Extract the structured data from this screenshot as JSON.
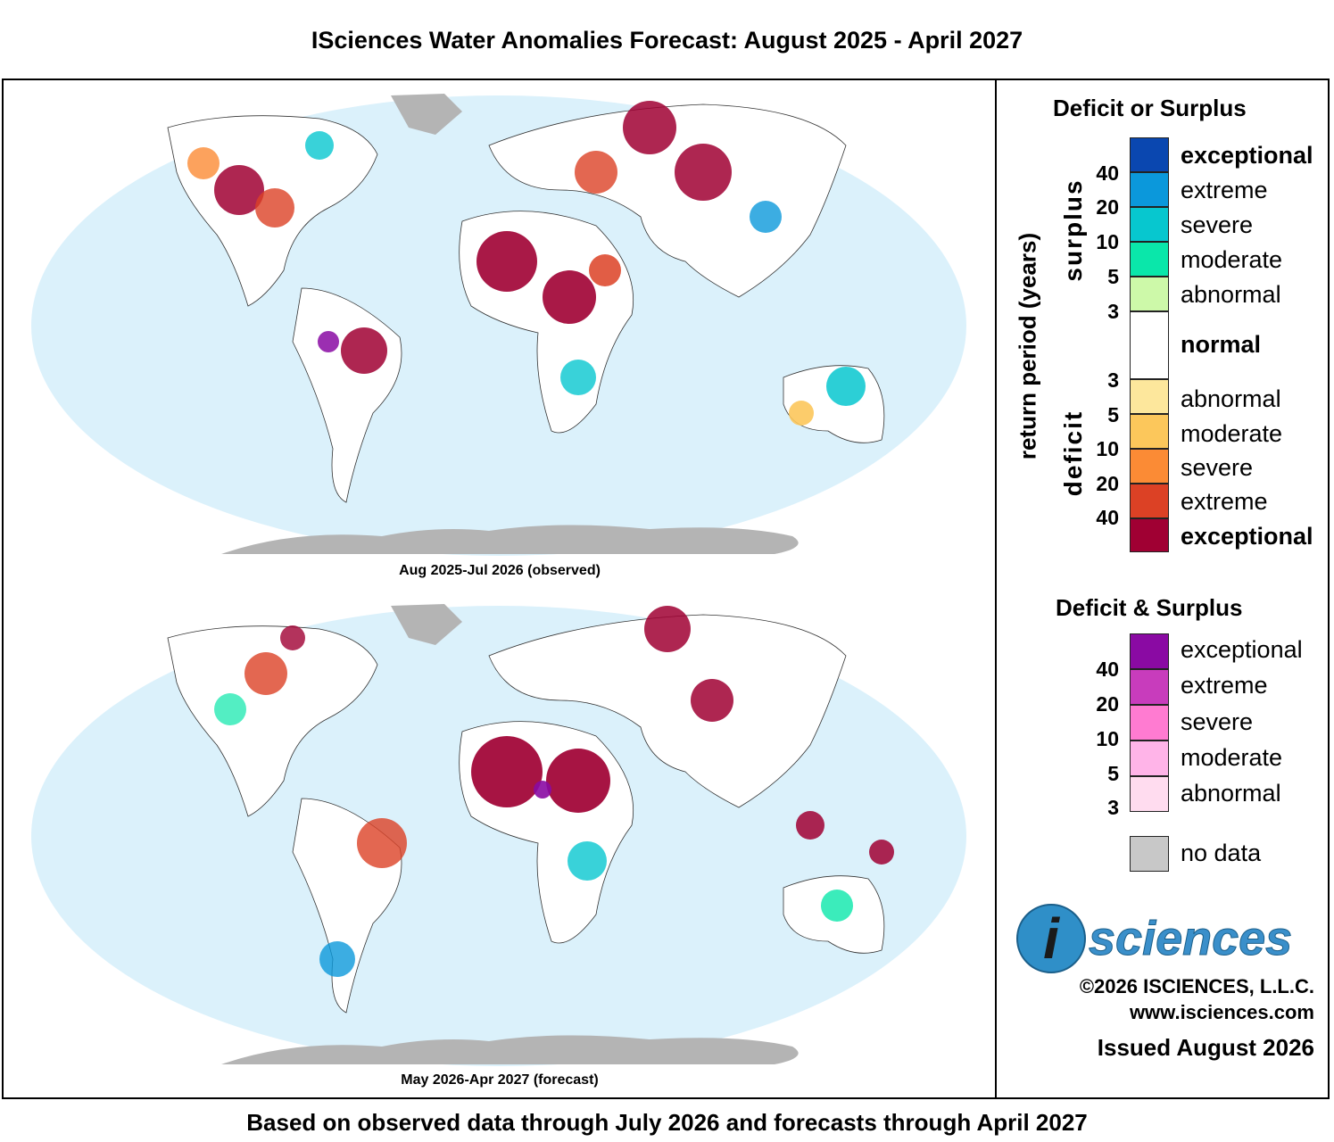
{
  "title": "ISciences Water Anomalies Forecast: August 2025 - April 2027",
  "footer": "Based on observed data through July 2026 and forecasts through April 2027",
  "maps": [
    {
      "caption": "Aug 2025-Jul 2026 (observed)"
    },
    {
      "caption": "May 2026-Apr 2027 (forecast)"
    }
  ],
  "legend": {
    "title1": "Deficit or Surplus",
    "axis_title": "return period (years)",
    "surplus_label": "surplus",
    "deficit_label": "deficit",
    "surplus_items": [
      {
        "label": "exceptional",
        "color": "#0a47b0"
      },
      {
        "label": "extreme",
        "color": "#0b98db"
      },
      {
        "label": "severe",
        "color": "#07c7cf"
      },
      {
        "label": "moderate",
        "color": "#0ae7aa"
      },
      {
        "label": "abnormal",
        "color": "#cdf9a9"
      }
    ],
    "normal_label": "normal",
    "deficit_items": [
      {
        "label": "abnormal",
        "color": "#fde79c"
      },
      {
        "label": "moderate",
        "color": "#fcc75b"
      },
      {
        "label": "severe",
        "color": "#fb8b35"
      },
      {
        "label": "extreme",
        "color": "#dc4125"
      },
      {
        "label": "exceptional",
        "color": "#a00033"
      }
    ],
    "surplus_ticks": [
      "40",
      "20",
      "10",
      "5",
      "3"
    ],
    "deficit_ticks": [
      "3",
      "5",
      "10",
      "20",
      "40"
    ],
    "title2": "Deficit & Surplus",
    "both_items": [
      {
        "label": "exceptional",
        "color": "#8a0aa3"
      },
      {
        "label": "extreme",
        "color": "#c83cbc"
      },
      {
        "label": "severe",
        "color": "#ff7bd1"
      },
      {
        "label": "moderate",
        "color": "#ffb4e8"
      },
      {
        "label": "abnormal",
        "color": "#ffdcef"
      }
    ],
    "both_ticks": [
      "40",
      "20",
      "10",
      "5",
      "3"
    ],
    "nodata_label": "no data",
    "nodata_color": "#c8c8c8"
  },
  "logo_text": "sciences",
  "logo_letter": "i",
  "copyright": "©2026 ISCIENCES, L.L.C.",
  "website": "www.isciences.com",
  "issued": "Issued August 2026"
}
